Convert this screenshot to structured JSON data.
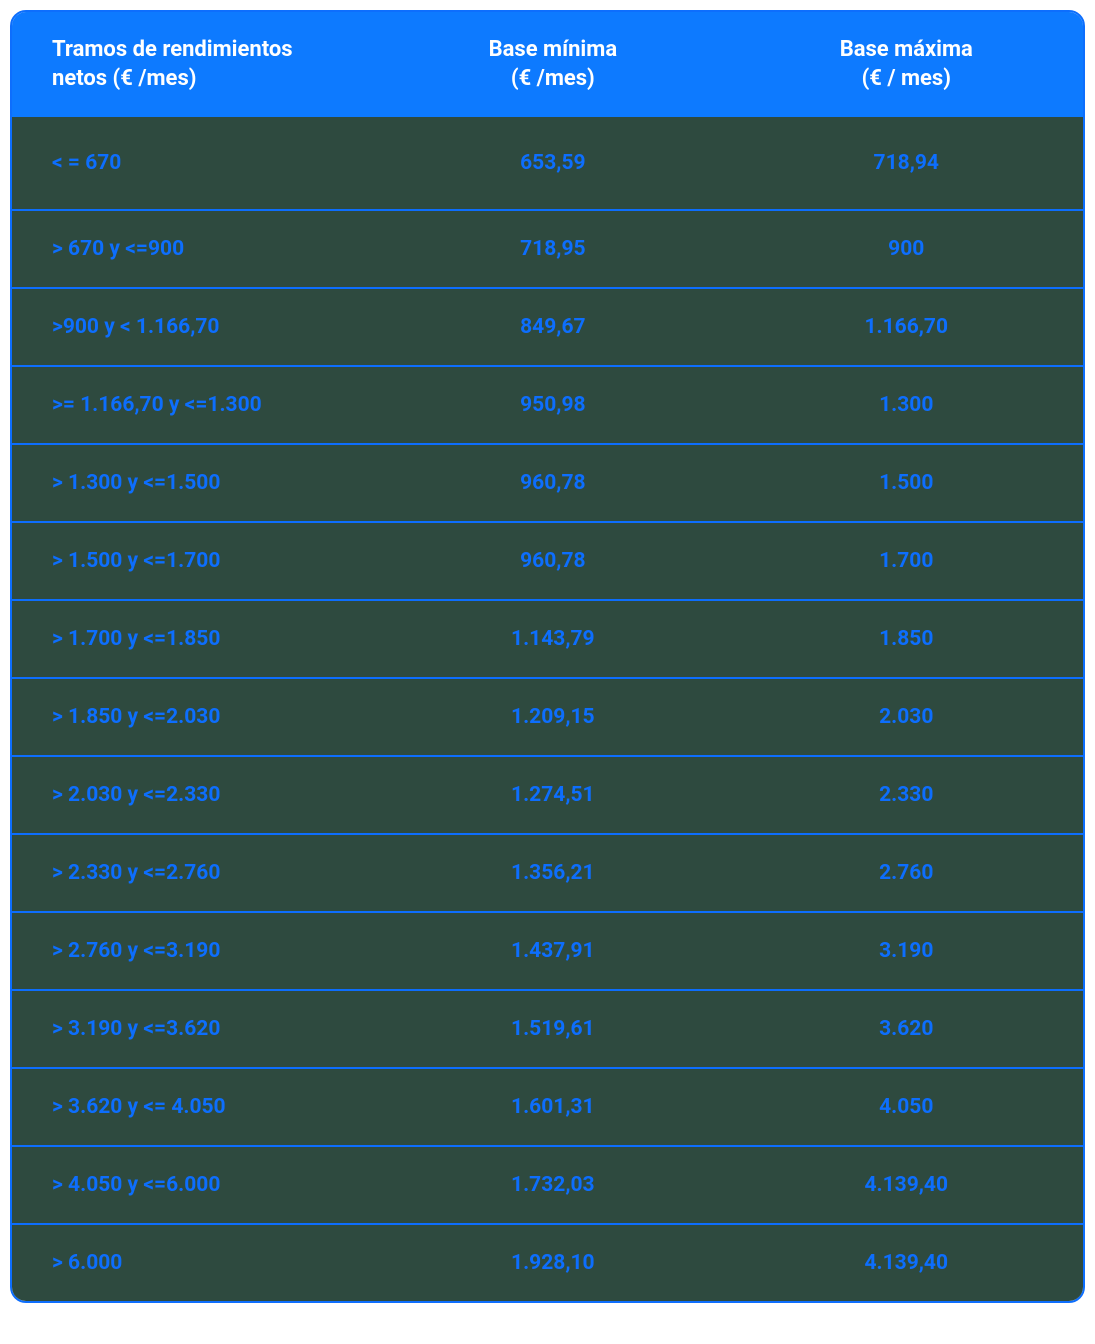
{
  "table": {
    "type": "table",
    "columns": [
      {
        "label_line1": "Tramos de rendimientos",
        "label_line2": "netos (€ /mes)",
        "align": "left",
        "width_pct": 34
      },
      {
        "label_line1": "Base mínima",
        "label_line2": "(€ /mes)",
        "align": "center",
        "width_pct": 33
      },
      {
        "label_line1": "Base máxima",
        "label_line2": "(€ / mes)",
        "align": "center",
        "width_pct": 33
      }
    ],
    "rows": [
      [
        "< = 670",
        "653,59",
        "718,94"
      ],
      [
        "> 670 y <=900",
        "718,95",
        "900"
      ],
      [
        ">900 y  < 1.166,70",
        "849,67",
        "1.166,70"
      ],
      [
        ">= 1.166,70 y <=1.300",
        "950,98",
        "1.300"
      ],
      [
        "> 1.300 y <=1.500",
        "960,78",
        "1.500"
      ],
      [
        "> 1.500 y <=1.700",
        "960,78",
        "1.700"
      ],
      [
        "> 1.700 y <=1.850",
        "1.143,79",
        "1.850"
      ],
      [
        "> 1.850 y <=2.030",
        "1.209,15",
        "2.030"
      ],
      [
        "> 2.030 y <=2.330",
        "1.274,51",
        "2.330"
      ],
      [
        "> 2.330 y <=2.760",
        "1.356,21",
        "2.760"
      ],
      [
        "> 2.760 y <=3.190",
        "1.437,91",
        "3.190"
      ],
      [
        "> 3.190 y <=3.620",
        "1.519,61",
        "3.620"
      ],
      [
        "> 3.620 y <= 4.050",
        "1.601,31",
        "4.050"
      ],
      [
        "> 4.050 y <=6.000",
        "1.732,03",
        "4.139,40"
      ],
      [
        "> 6.000",
        "1.928,10",
        "4.139,40"
      ]
    ],
    "styling": {
      "header_background": "#0d7aff",
      "header_text_color": "#ffffff",
      "header_font_size": 22,
      "header_font_weight": 700,
      "body_background": "#2e4a3f",
      "body_text_color": "#0d6efd",
      "body_font_size": 21,
      "body_font_weight": 700,
      "border_color": "#0d6efd",
      "border_width": 2,
      "border_radius": 16,
      "row_padding_vertical": 26,
      "first_row_padding_vertical": 34,
      "header_padding_vertical": 24,
      "cell_padding_left": 40
    }
  }
}
